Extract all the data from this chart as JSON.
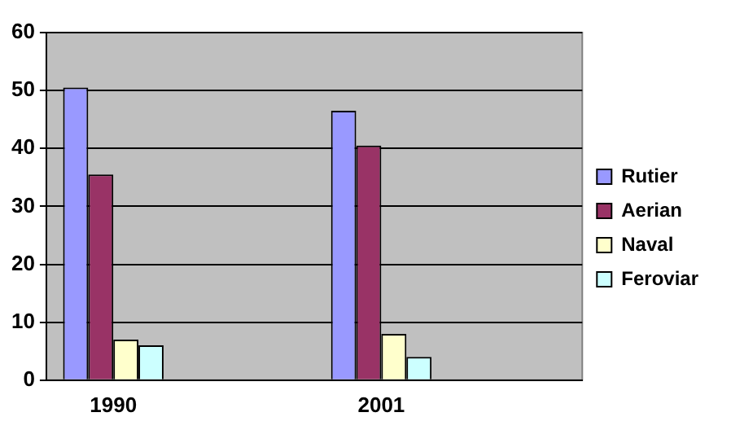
{
  "chart_data": {
    "type": "bar",
    "categories": [
      "1990",
      null,
      "2001",
      null
    ],
    "series": [
      {
        "name": "Rutier",
        "color": "#9999ff",
        "values": [
          50.5,
          null,
          46.5,
          null
        ]
      },
      {
        "name": "Aerian",
        "color": "#993366",
        "values": [
          35.5,
          null,
          40.5,
          null
        ]
      },
      {
        "name": "Naval",
        "color": "#ffffcc",
        "values": [
          7,
          null,
          8,
          null
        ]
      },
      {
        "name": "Feroviar",
        "color": "#ccffff",
        "values": [
          6,
          null,
          4,
          null
        ]
      }
    ],
    "ylim": [
      0,
      60
    ],
    "yticks": [
      0,
      10,
      20,
      30,
      40,
      50,
      60
    ],
    "grid": "y",
    "legend": "right"
  }
}
